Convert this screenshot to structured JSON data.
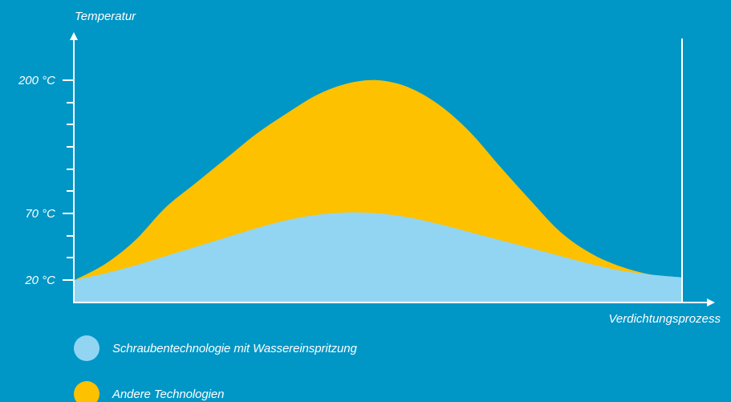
{
  "chart_data": {
    "type": "area",
    "ylabel": "Temperatur",
    "xlabel": "Verdichtungsprozess",
    "yticks": [
      {
        "value": 20,
        "label": "20 °C"
      },
      {
        "value": 70,
        "label": "70 °C"
      },
      {
        "value": 200,
        "label": "200 °C"
      }
    ],
    "ylim": [
      0,
      200
    ],
    "xlim": [
      0,
      1
    ],
    "series": [
      {
        "name": "Andere Technologien",
        "color": "#FDC100",
        "x": [
          0,
          0.05,
          0.1,
          0.15,
          0.2,
          0.25,
          0.3,
          0.35,
          0.4,
          0.45,
          0.5,
          0.55,
          0.6,
          0.65,
          0.7,
          0.75,
          0.8,
          0.85,
          0.9,
          0.95,
          1.0
        ],
        "y": [
          20,
          32,
          50,
          76,
          100,
          124,
          148,
          168,
          186,
          197,
          200,
          193,
          176,
          150,
          116,
          83,
          56,
          40,
          30,
          24,
          22
        ]
      },
      {
        "name": "Schraubentechnologie mit Wassereinspritzung",
        "color": "#92D5F2",
        "x": [
          0,
          0.05,
          0.1,
          0.15,
          0.2,
          0.25,
          0.3,
          0.35,
          0.4,
          0.45,
          0.5,
          0.55,
          0.6,
          0.65,
          0.7,
          0.75,
          0.8,
          0.85,
          0.9,
          0.95,
          1.0
        ],
        "y": [
          20,
          25,
          31,
          38,
          45,
          52,
          59,
          65,
          69,
          71,
          70,
          67,
          62,
          56,
          50,
          44,
          38,
          32,
          27,
          24,
          22
        ]
      }
    ]
  },
  "legend": {
    "items": [
      {
        "label": "Schraubentechnologie mit Wassereinspritzung",
        "color": "#92D5F2"
      },
      {
        "label": "Andere Technologien",
        "color": "#FDC100"
      }
    ]
  }
}
